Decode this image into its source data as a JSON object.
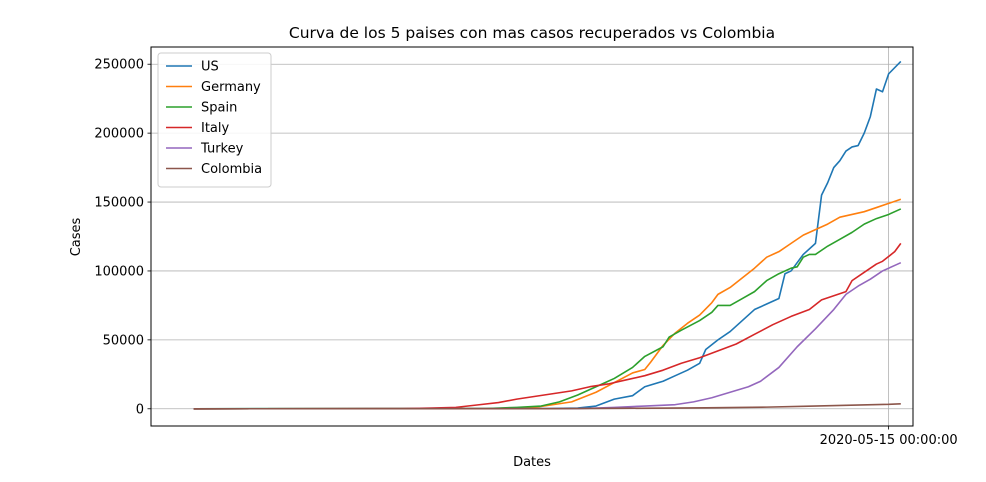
{
  "chart_data": {
    "type": "line",
    "title": "Curva de los 5 paises con mas casos recuperados vs Colombia",
    "xlabel": "Dates",
    "ylabel": "Cases",
    "ylim": [
      -12500,
      262500
    ],
    "yticks": [
      0,
      50000,
      100000,
      150000,
      200000,
      250000
    ],
    "xlim": [
      "2020-01-15",
      "2020-05-19"
    ],
    "xticks": [
      {
        "value": "2020-05-15",
        "label": "2020-05-15 00:00:00"
      }
    ],
    "grid": true,
    "legend": "top-left",
    "series": [
      {
        "name": "US",
        "color": "#1f77b4",
        "points": [
          [
            "2020-01-22",
            0
          ],
          [
            "2020-03-20",
            200
          ],
          [
            "2020-03-25",
            500
          ],
          [
            "2020-03-28",
            2000
          ],
          [
            "2020-03-31",
            7000
          ],
          [
            "2020-04-03",
            9500
          ],
          [
            "2020-04-05",
            16000
          ],
          [
            "2020-04-08",
            20000
          ],
          [
            "2020-04-10",
            24000
          ],
          [
            "2020-04-12",
            28000
          ],
          [
            "2020-04-14",
            33000
          ],
          [
            "2020-04-15",
            43000
          ],
          [
            "2020-04-17",
            50000
          ],
          [
            "2020-04-19",
            56000
          ],
          [
            "2020-04-21",
            64000
          ],
          [
            "2020-04-23",
            72000
          ],
          [
            "2020-04-25",
            76000
          ],
          [
            "2020-04-27",
            80000
          ],
          [
            "2020-04-28",
            98000
          ],
          [
            "2020-04-29",
            100000
          ],
          [
            "2020-05-01",
            112000
          ],
          [
            "2020-05-03",
            120000
          ],
          [
            "2020-05-04",
            155000
          ],
          [
            "2020-05-05",
            164000
          ],
          [
            "2020-05-06",
            175000
          ],
          [
            "2020-05-07",
            180000
          ],
          [
            "2020-05-08",
            187000
          ],
          [
            "2020-05-09",
            190000
          ],
          [
            "2020-05-10",
            191000
          ],
          [
            "2020-05-11",
            200000
          ],
          [
            "2020-05-12",
            212000
          ],
          [
            "2020-05-13",
            232000
          ],
          [
            "2020-05-14",
            230000
          ],
          [
            "2020-05-15",
            243000
          ],
          [
            "2020-05-17",
            252000
          ]
        ]
      },
      {
        "name": "Germany",
        "color": "#ff7f0e",
        "points": [
          [
            "2020-01-22",
            0
          ],
          [
            "2020-03-10",
            100
          ],
          [
            "2020-03-18",
            1000
          ],
          [
            "2020-03-24",
            5000
          ],
          [
            "2020-03-28",
            12000
          ],
          [
            "2020-03-31",
            19000
          ],
          [
            "2020-04-03",
            26000
          ],
          [
            "2020-04-05",
            28500
          ],
          [
            "2020-04-06",
            34000
          ],
          [
            "2020-04-08",
            46000
          ],
          [
            "2020-04-10",
            55000
          ],
          [
            "2020-04-12",
            62000
          ],
          [
            "2020-04-14",
            68000
          ],
          [
            "2020-04-16",
            77000
          ],
          [
            "2020-04-17",
            83000
          ],
          [
            "2020-04-19",
            88000
          ],
          [
            "2020-04-21",
            95000
          ],
          [
            "2020-04-23",
            102000
          ],
          [
            "2020-04-25",
            110000
          ],
          [
            "2020-04-27",
            114000
          ],
          [
            "2020-04-29",
            120000
          ],
          [
            "2020-05-01",
            126000
          ],
          [
            "2020-05-03",
            130000
          ],
          [
            "2020-05-05",
            134000
          ],
          [
            "2020-05-07",
            139000
          ],
          [
            "2020-05-09",
            141000
          ],
          [
            "2020-05-11",
            143000
          ],
          [
            "2020-05-13",
            146000
          ],
          [
            "2020-05-15",
            149000
          ],
          [
            "2020-05-17",
            152000
          ]
        ]
      },
      {
        "name": "Spain",
        "color": "#2ca02c",
        "points": [
          [
            "2020-01-22",
            0
          ],
          [
            "2020-03-10",
            200
          ],
          [
            "2020-03-15",
            1000
          ],
          [
            "2020-03-19",
            2000
          ],
          [
            "2020-03-22",
            5000
          ],
          [
            "2020-03-25",
            10000
          ],
          [
            "2020-03-28",
            16000
          ],
          [
            "2020-03-31",
            22000
          ],
          [
            "2020-04-03",
            30000
          ],
          [
            "2020-04-05",
            38000
          ],
          [
            "2020-04-08",
            45000
          ],
          [
            "2020-04-09",
            52000
          ],
          [
            "2020-04-11",
            57000
          ],
          [
            "2020-04-14",
            64000
          ],
          [
            "2020-04-16",
            70000
          ],
          [
            "2020-04-17",
            75000
          ],
          [
            "2020-04-19",
            75000
          ],
          [
            "2020-04-21",
            80000
          ],
          [
            "2020-04-23",
            85000
          ],
          [
            "2020-04-25",
            93000
          ],
          [
            "2020-04-27",
            98000
          ],
          [
            "2020-04-29",
            102000
          ],
          [
            "2020-04-30",
            103000
          ],
          [
            "2020-05-01",
            110000
          ],
          [
            "2020-05-02",
            112000
          ],
          [
            "2020-05-03",
            112000
          ],
          [
            "2020-05-05",
            118000
          ],
          [
            "2020-05-07",
            123000
          ],
          [
            "2020-05-09",
            128000
          ],
          [
            "2020-05-11",
            134000
          ],
          [
            "2020-05-13",
            138000
          ],
          [
            "2020-05-15",
            141000
          ],
          [
            "2020-05-17",
            145000
          ]
        ]
      },
      {
        "name": "Italy",
        "color": "#d62728",
        "points": [
          [
            "2020-01-22",
            0
          ],
          [
            "2020-02-25",
            50
          ],
          [
            "2020-03-01",
            500
          ],
          [
            "2020-03-05",
            1000
          ],
          [
            "2020-03-09",
            3000
          ],
          [
            "2020-03-12",
            4500
          ],
          [
            "2020-03-15",
            7000
          ],
          [
            "2020-03-18",
            9000
          ],
          [
            "2020-03-21",
            11000
          ],
          [
            "2020-03-24",
            13000
          ],
          [
            "2020-03-27",
            16000
          ],
          [
            "2020-03-30",
            18000
          ],
          [
            "2020-04-02",
            21000
          ],
          [
            "2020-04-05",
            24000
          ],
          [
            "2020-04-08",
            28000
          ],
          [
            "2020-04-11",
            33000
          ],
          [
            "2020-04-14",
            37000
          ],
          [
            "2020-04-17",
            42000
          ],
          [
            "2020-04-20",
            47000
          ],
          [
            "2020-04-23",
            54000
          ],
          [
            "2020-04-26",
            61000
          ],
          [
            "2020-04-29",
            67000
          ],
          [
            "2020-05-02",
            72000
          ],
          [
            "2020-05-04",
            79000
          ],
          [
            "2020-05-06",
            82000
          ],
          [
            "2020-05-08",
            85000
          ],
          [
            "2020-05-09",
            93000
          ],
          [
            "2020-05-11",
            99000
          ],
          [
            "2020-05-13",
            105000
          ],
          [
            "2020-05-14",
            107000
          ],
          [
            "2020-05-16",
            114000
          ],
          [
            "2020-05-17",
            120000
          ]
        ]
      },
      {
        "name": "Turkey",
        "color": "#9467bd",
        "points": [
          [
            "2020-01-22",
            0
          ],
          [
            "2020-03-25",
            100
          ],
          [
            "2020-03-31",
            1000
          ],
          [
            "2020-04-05",
            2000
          ],
          [
            "2020-04-10",
            3000
          ],
          [
            "2020-04-13",
            5000
          ],
          [
            "2020-04-16",
            8000
          ],
          [
            "2020-04-19",
            12000
          ],
          [
            "2020-04-22",
            16000
          ],
          [
            "2020-04-24",
            20000
          ],
          [
            "2020-04-27",
            30000
          ],
          [
            "2020-04-30",
            45000
          ],
          [
            "2020-05-03",
            58000
          ],
          [
            "2020-05-06",
            72000
          ],
          [
            "2020-05-08",
            83000
          ],
          [
            "2020-05-10",
            89000
          ],
          [
            "2020-05-12",
            94000
          ],
          [
            "2020-05-14",
            100000
          ],
          [
            "2020-05-16",
            104000
          ],
          [
            "2020-05-17",
            106000
          ]
        ]
      },
      {
        "name": "Colombia",
        "color": "#8c564b",
        "points": [
          [
            "2020-01-22",
            0
          ],
          [
            "2020-03-20",
            50
          ],
          [
            "2020-04-01",
            300
          ],
          [
            "2020-04-15",
            700
          ],
          [
            "2020-04-25",
            1200
          ],
          [
            "2020-05-01",
            1800
          ],
          [
            "2020-05-08",
            2500
          ],
          [
            "2020-05-15",
            3200
          ],
          [
            "2020-05-17",
            3600
          ]
        ]
      }
    ]
  }
}
